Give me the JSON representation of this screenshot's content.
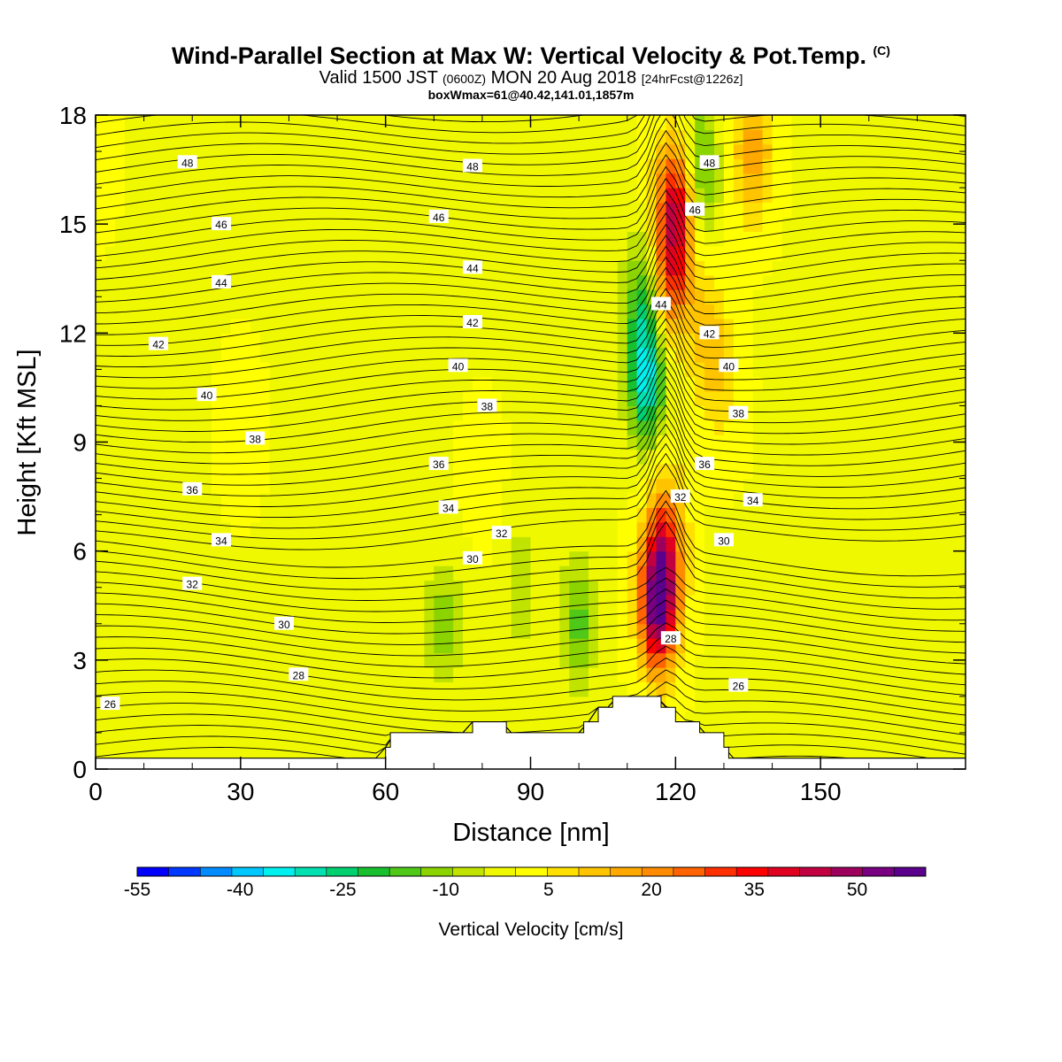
{
  "title": {
    "main": "Wind-Parallel Section at Max W: Vertical Velocity & Pot.Temp.",
    "copyright": "(C)",
    "valid_prefix": "Valid 1500 JST",
    "valid_utc": "(0600Z)",
    "valid_date": "MON 20 Aug 2018",
    "forecast": "[24hrFcst@1226z]",
    "box_info": "boxWmax=61@40.42,141.01,1857m"
  },
  "chart_data": {
    "type": "heatmap",
    "xlabel": "Distance [nm]",
    "ylabel": "Height [Kft MSL]",
    "xlim": [
      0,
      178
    ],
    "ylim": [
      0,
      18
    ],
    "xticks": [
      0,
      30,
      60,
      90,
      120,
      150
    ],
    "yticks": [
      0,
      3,
      6,
      9,
      12,
      15,
      18
    ],
    "colorbar": {
      "label": "Vertical Velocity [cm/s]",
      "tick_labels": [
        "-55",
        "-40",
        "-25",
        "-10",
        "5",
        "20",
        "35",
        "50"
      ],
      "tick_values": [
        -55,
        -40,
        -25,
        -10,
        5,
        20,
        35,
        50
      ],
      "range": [
        -55,
        60
      ],
      "colors": [
        "#0000ff",
        "#0038ff",
        "#008cff",
        "#00c8ff",
        "#00f0f0",
        "#00e0b0",
        "#00d070",
        "#18c030",
        "#50c818",
        "#8cd400",
        "#c0e400",
        "#f0f800",
        "#ffff00",
        "#ffe000",
        "#ffc400",
        "#ffa800",
        "#ff8c00",
        "#ff6400",
        "#ff3000",
        "#ff0000",
        "#e00020",
        "#c00040",
        "#9c005c",
        "#780080",
        "#5a008c"
      ]
    },
    "terrain": [
      [
        0,
        0.3
      ],
      [
        60,
        0.3
      ],
      [
        60,
        0.6
      ],
      [
        61,
        0.6
      ],
      [
        61,
        1.0
      ],
      [
        78,
        1.0
      ],
      [
        78,
        1.3
      ],
      [
        85,
        1.3
      ],
      [
        85,
        1.0
      ],
      [
        101,
        1.0
      ],
      [
        101,
        1.3
      ],
      [
        104,
        1.3
      ],
      [
        104,
        1.7
      ],
      [
        107,
        1.7
      ],
      [
        107,
        2.0
      ],
      [
        117,
        2.0
      ],
      [
        117,
        1.7
      ],
      [
        120,
        1.7
      ],
      [
        120,
        1.3
      ],
      [
        125,
        1.3
      ],
      [
        125,
        1.0
      ],
      [
        130,
        1.0
      ],
      [
        130,
        0.6
      ],
      [
        131,
        0.6
      ],
      [
        131,
        0.3
      ],
      [
        178,
        0.3
      ]
    ],
    "w_features": [
      {
        "x": 116.5,
        "y": 4.6,
        "w": 60
      },
      {
        "x": 118,
        "y": 6.5,
        "w": 22
      },
      {
        "x": 120,
        "y": 15.5,
        "w": 38
      },
      {
        "x": 119,
        "y": 13.5,
        "w": 25
      },
      {
        "x": 114,
        "y": 10.8,
        "w": -33
      },
      {
        "x": 113,
        "y": 13.0,
        "w": -15
      },
      {
        "x": 125,
        "y": 16.5,
        "w": -18
      },
      {
        "x": 126.5,
        "y": 12.0,
        "w": 12
      },
      {
        "x": 130,
        "y": 10.5,
        "w": 6
      },
      {
        "x": 136,
        "y": 17.0,
        "w": 18
      },
      {
        "x": 72,
        "y": 4.0,
        "w": -12
      },
      {
        "x": 100,
        "y": 4.0,
        "w": -15
      },
      {
        "x": 88,
        "y": 5.0,
        "w": -8
      },
      {
        "x": 30,
        "y": 9.5,
        "w": 3
      },
      {
        "x": 80,
        "y": 8.0,
        "w": 3
      },
      {
        "x": 0,
        "y": 17.0,
        "w": 3
      }
    ],
    "theta_contours": {
      "label_points": [
        {
          "x": 19,
          "y": 16.7,
          "label": "48"
        },
        {
          "x": 78,
          "y": 16.6,
          "label": "48"
        },
        {
          "x": 127,
          "y": 16.7,
          "label": "48"
        },
        {
          "x": 26,
          "y": 15.0,
          "label": "46"
        },
        {
          "x": 71,
          "y": 15.2,
          "label": "46"
        },
        {
          "x": 124,
          "y": 15.4,
          "label": "46"
        },
        {
          "x": 26,
          "y": 13.4,
          "label": "44"
        },
        {
          "x": 78,
          "y": 13.8,
          "label": "44"
        },
        {
          "x": 117,
          "y": 12.8,
          "label": "44"
        },
        {
          "x": 13,
          "y": 11.7,
          "label": "42"
        },
        {
          "x": 78,
          "y": 12.3,
          "label": "42"
        },
        {
          "x": 127,
          "y": 12.0,
          "label": "42"
        },
        {
          "x": 23,
          "y": 10.3,
          "label": "40"
        },
        {
          "x": 75,
          "y": 11.1,
          "label": "40"
        },
        {
          "x": 131,
          "y": 11.1,
          "label": "40"
        },
        {
          "x": 33,
          "y": 9.1,
          "label": "38"
        },
        {
          "x": 81,
          "y": 10.0,
          "label": "38"
        },
        {
          "x": 133,
          "y": 9.8,
          "label": "38"
        },
        {
          "x": 20,
          "y": 7.7,
          "label": "36"
        },
        {
          "x": 71,
          "y": 8.4,
          "label": "36"
        },
        {
          "x": 126,
          "y": 8.4,
          "label": "36"
        },
        {
          "x": 26,
          "y": 6.3,
          "label": "34"
        },
        {
          "x": 73,
          "y": 7.2,
          "label": "34"
        },
        {
          "x": 136,
          "y": 7.4,
          "label": "34"
        },
        {
          "x": 20,
          "y": 5.1,
          "label": "32"
        },
        {
          "x": 84,
          "y": 6.5,
          "label": "32"
        },
        {
          "x": 121,
          "y": 7.5,
          "label": "32"
        },
        {
          "x": 39,
          "y": 4.0,
          "label": "30"
        },
        {
          "x": 78,
          "y": 5.8,
          "label": "30"
        },
        {
          "x": 130,
          "y": 6.3,
          "label": "30"
        },
        {
          "x": 42,
          "y": 2.6,
          "label": "28"
        },
        {
          "x": 119,
          "y": 3.6,
          "label": "28"
        },
        {
          "x": 3,
          "y": 1.8,
          "label": "26"
        },
        {
          "x": 133,
          "y": 2.3,
          "label": "26"
        }
      ]
    }
  }
}
